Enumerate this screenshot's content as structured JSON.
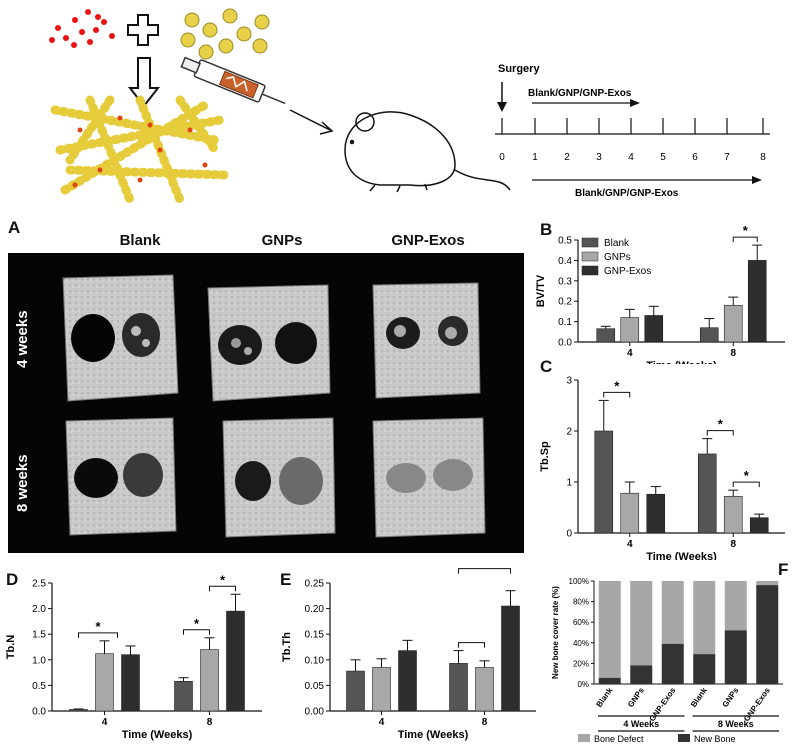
{
  "top": {
    "surgery_label": "Surgery",
    "treat_label_top": "Blank/GNP/GNP-Exos",
    "treat_label_bottom": "Blank/GNP/GNP-Exos",
    "timeline_ticks": [
      "0",
      "1",
      "2",
      "3",
      "4",
      "5",
      "6",
      "7",
      "8"
    ]
  },
  "panel_a": {
    "letter": "A",
    "columns": [
      "Blank",
      "GNPs",
      "GNP-Exos"
    ],
    "rows": [
      "4 weeks",
      "8 weeks"
    ]
  },
  "colors": {
    "blank": "#555555",
    "gnps": "#a8a8a8",
    "gnpexos": "#2e2e2e",
    "bone_defect": "#a6a6a6",
    "new_bone": "#333333"
  },
  "chart_data": [
    {
      "id": "B",
      "letter": "B",
      "type": "bar",
      "categories": [
        "4",
        "8"
      ],
      "xlabel": "Time (Weeks)",
      "ylabel": "BV/TV",
      "ylim": [
        0,
        0.5
      ],
      "yticks": [
        "0.0",
        "0.1",
        "0.2",
        "0.3",
        "0.4",
        "0.5"
      ],
      "legend": [
        "Blank",
        "GNPs",
        "GNP-Exos"
      ],
      "legend_position": "top-left",
      "series": [
        {
          "name": "Blank",
          "values": [
            0.065,
            0.07
          ],
          "err": [
            0.012,
            0.045
          ]
        },
        {
          "name": "GNPs",
          "values": [
            0.12,
            0.18
          ],
          "err": [
            0.04,
            0.04
          ]
        },
        {
          "name": "GNP-Exos",
          "values": [
            0.13,
            0.4
          ],
          "err": [
            0.045,
            0.075
          ]
        }
      ],
      "sig": [
        {
          "group": 1,
          "from": 1,
          "to": 2,
          "label": "*"
        }
      ]
    },
    {
      "id": "C",
      "letter": "C",
      "type": "bar",
      "categories": [
        "4",
        "8"
      ],
      "xlabel": "Time (Weeks)",
      "ylabel": "Tb.Sp",
      "ylim": [
        0,
        3
      ],
      "yticks": [
        "0",
        "1",
        "2",
        "3"
      ],
      "series": [
        {
          "name": "Blank",
          "values": [
            2.0,
            1.55
          ],
          "err": [
            0.6,
            0.3
          ]
        },
        {
          "name": "GNPs",
          "values": [
            0.78,
            0.72
          ],
          "err": [
            0.22,
            0.12
          ]
        },
        {
          "name": "GNP-Exos",
          "values": [
            0.76,
            0.3
          ],
          "err": [
            0.15,
            0.07
          ]
        }
      ],
      "sig": [
        {
          "group": 0,
          "from": 0,
          "to": 1,
          "label": "*"
        },
        {
          "group": 1,
          "from": 0,
          "to": 1,
          "label": "*"
        },
        {
          "group": 1,
          "from": 1,
          "to": 2,
          "label": "*"
        }
      ]
    },
    {
      "id": "D",
      "letter": "D",
      "type": "bar",
      "categories": [
        "4",
        "8"
      ],
      "xlabel": "Time (Weeks)",
      "ylabel": "Tb.N",
      "ylim": [
        0,
        2.5
      ],
      "yticks": [
        "0.0",
        "0.5",
        "1.0",
        "1.5",
        "2.0",
        "2.5"
      ],
      "series": [
        {
          "name": "Blank",
          "values": [
            0.03,
            0.58
          ],
          "err": [
            0.01,
            0.07
          ]
        },
        {
          "name": "GNPs",
          "values": [
            1.12,
            1.2
          ],
          "err": [
            0.25,
            0.23
          ]
        },
        {
          "name": "GNP-Exos",
          "values": [
            1.1,
            1.95
          ],
          "err": [
            0.17,
            0.33
          ]
        }
      ],
      "sig": [
        {
          "group": 0,
          "from": 0,
          "to": "1-2",
          "label": "*"
        },
        {
          "group": 1,
          "from": 0,
          "to": 1,
          "label": "*"
        },
        {
          "group": 1,
          "from": 1,
          "to": 2,
          "label": "*"
        }
      ]
    },
    {
      "id": "E",
      "letter": "E",
      "type": "bar",
      "categories": [
        "4",
        "8"
      ],
      "xlabel": "Time (Weeks)",
      "ylabel": "Tb.Th",
      "ylim": [
        0,
        0.25
      ],
      "yticks": [
        "0.00",
        "0.05",
        "0.10",
        "0.15",
        "0.20",
        "0.25"
      ],
      "series": [
        {
          "name": "Blank",
          "values": [
            0.078,
            0.093
          ],
          "err": [
            0.022,
            0.025
          ]
        },
        {
          "name": "GNPs",
          "values": [
            0.085,
            0.085
          ],
          "err": [
            0.017,
            0.013
          ]
        },
        {
          "name": "GNP-Exos",
          "values": [
            0.118,
            0.205
          ],
          "err": [
            0.02,
            0.03
          ]
        }
      ],
      "sig": [
        {
          "group": 1,
          "from": 0,
          "to": 1,
          "label": ""
        },
        {
          "group": 1,
          "from": 0,
          "to": 2,
          "label": "*"
        }
      ]
    },
    {
      "id": "F",
      "letter": "F",
      "type": "bar",
      "stacked": true,
      "categories": [
        "Blank",
        "GNPs",
        "GNP-Exos",
        "Blank",
        "GNPs",
        "GNP-Exos"
      ],
      "groups": [
        "4 Weeks",
        "8 Weeks"
      ],
      "ylabel": "New bone cover rate (%)",
      "ylim": [
        0,
        100
      ],
      "yticks": [
        "0%",
        "20%",
        "40%",
        "60%",
        "80%",
        "100%"
      ],
      "legend": [
        "Bone Defect",
        "New Bone"
      ],
      "legend_position": "bottom",
      "series": [
        {
          "name": "New Bone",
          "values": [
            6,
            18,
            39,
            29,
            52,
            96
          ]
        },
        {
          "name": "Bone Defect",
          "values": [
            94,
            82,
            61,
            71,
            48,
            4
          ]
        }
      ]
    }
  ]
}
